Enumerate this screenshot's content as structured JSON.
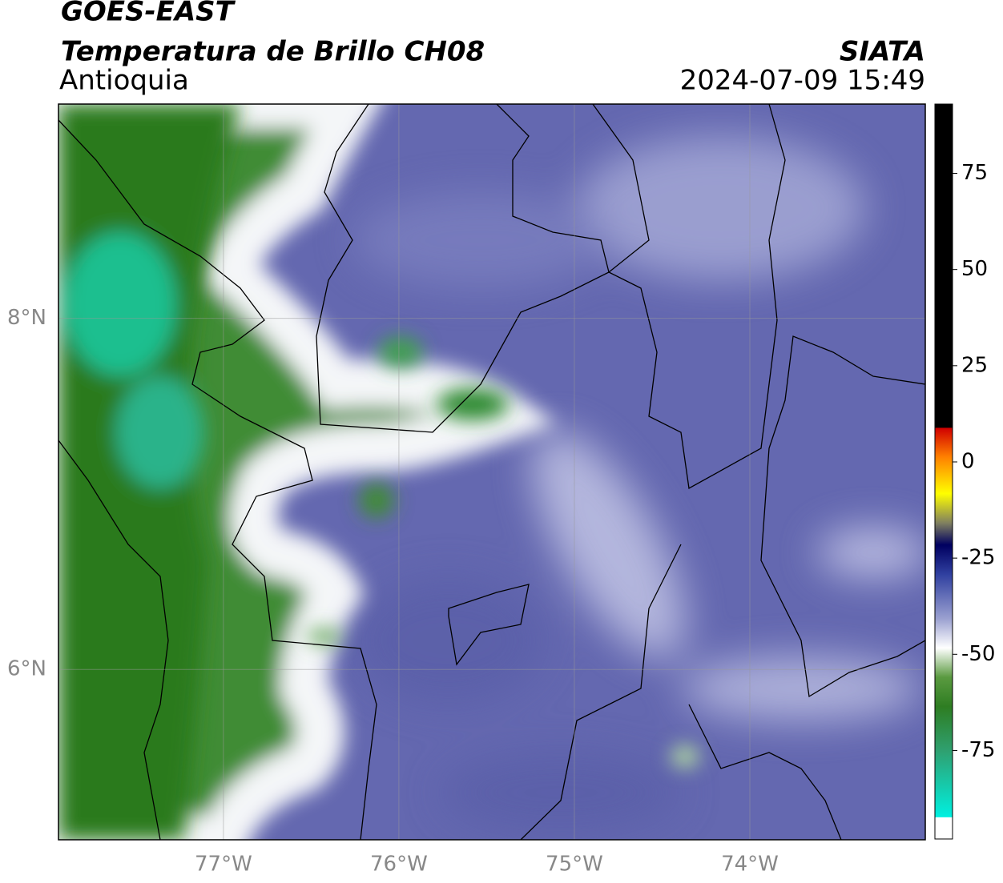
{
  "header": {
    "title": "GOES-EAST",
    "subtitle": "Temperatura de Brillo CH08",
    "region": "Antioquia",
    "source": "SIATA",
    "datetime": "2024-07-09 15:49"
  },
  "map": {
    "lonlim": [
      -77.94,
      -73.0
    ],
    "latlim": [
      5.03,
      9.22
    ],
    "lon_ticks": [
      {
        "value": -77,
        "label": "77°W"
      },
      {
        "value": -76,
        "label": "76°W"
      },
      {
        "value": -75,
        "label": "75°W"
      },
      {
        "value": -74,
        "label": "74°W"
      }
    ],
    "lat_ticks": [
      {
        "value": 8,
        "label": "8°N"
      },
      {
        "value": 6,
        "label": "6°N"
      }
    ]
  },
  "colorbar": {
    "range": [
      -98,
      93
    ],
    "ticks": [
      75,
      50,
      25,
      0,
      -25,
      -50,
      -75
    ]
  }
}
